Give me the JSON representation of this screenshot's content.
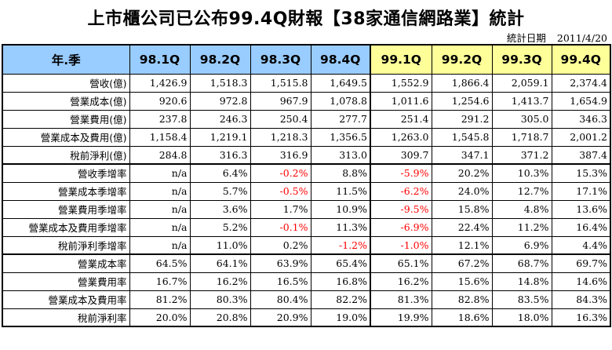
{
  "title": "上市櫃公司已公布99.4Q財報【38家通信網路業】統計",
  "stat_date_label": "統計日期",
  "stat_date_value": "2011/4/20",
  "header": {
    "corner": "年.季",
    "quarters": [
      "98.1Q",
      "98.2Q",
      "98.3Q",
      "98.4Q",
      "99.1Q",
      "99.2Q",
      "99.3Q",
      "99.4Q"
    ]
  },
  "rows": [
    {
      "label": "營收(億)",
      "values": [
        "1,426.9",
        "1,518.3",
        "1,515.8",
        "1,649.5",
        "1,552.9",
        "1,866.4",
        "2,059.1",
        "2,374.4"
      ]
    },
    {
      "label": "營業成本(億)",
      "values": [
        "920.6",
        "972.8",
        "967.9",
        "1,078.8",
        "1,011.6",
        "1,254.6",
        "1,413.7",
        "1,654.9"
      ]
    },
    {
      "label": "營業費用(億)",
      "values": [
        "237.8",
        "246.3",
        "250.4",
        "277.7",
        "251.4",
        "291.2",
        "305.0",
        "346.3"
      ]
    },
    {
      "label": "營業成本及費用(億)",
      "values": [
        "1,158.4",
        "1,219.1",
        "1,218.3",
        "1,356.5",
        "1,263.0",
        "1,545.8",
        "1,718.7",
        "2,001.2"
      ]
    },
    {
      "label": "稅前淨利(億)",
      "values": [
        "284.8",
        "316.3",
        "316.9",
        "313.0",
        "309.7",
        "347.1",
        "371.2",
        "387.4"
      ]
    },
    {
      "label": "營收季增率",
      "values": [
        "n/a",
        "6.4%",
        "-0.2%",
        "8.8%",
        "-5.9%",
        "20.2%",
        "10.3%",
        "15.3%"
      ]
    },
    {
      "label": "營業成本季增率",
      "values": [
        "n/a",
        "5.7%",
        "-0.5%",
        "11.5%",
        "-6.2%",
        "24.0%",
        "12.7%",
        "17.1%"
      ]
    },
    {
      "label": "營業費用季增率",
      "values": [
        "n/a",
        "3.6%",
        "1.7%",
        "10.9%",
        "-9.5%",
        "15.8%",
        "4.8%",
        "13.6%"
      ]
    },
    {
      "label": "營業成本及費用季增率",
      "values": [
        "n/a",
        "5.2%",
        "-0.1%",
        "11.3%",
        "-6.9%",
        "22.4%",
        "11.2%",
        "16.4%"
      ]
    },
    {
      "label": "稅前淨利季增率",
      "values": [
        "n/a",
        "11.0%",
        "0.2%",
        "-1.2%",
        "-1.0%",
        "12.1%",
        "6.9%",
        "4.4%"
      ]
    },
    {
      "label": "營業成本率",
      "values": [
        "64.5%",
        "64.1%",
        "63.9%",
        "65.4%",
        "65.1%",
        "67.2%",
        "68.7%",
        "69.7%"
      ]
    },
    {
      "label": "營業費用率",
      "values": [
        "16.7%",
        "16.2%",
        "16.5%",
        "16.8%",
        "16.2%",
        "15.6%",
        "14.8%",
        "14.6%"
      ]
    },
    {
      "label": "營業成本及費用率",
      "values": [
        "81.2%",
        "80.3%",
        "80.4%",
        "82.2%",
        "81.3%",
        "82.8%",
        "83.5%",
        "84.3%"
      ]
    },
    {
      "label": "稅前淨利率",
      "values": [
        "20.0%",
        "20.8%",
        "20.9%",
        "19.0%",
        "19.9%",
        "18.6%",
        "18.0%",
        "16.3%"
      ]
    }
  ],
  "colors": {
    "header_blue": "#99ccff",
    "header_yellow": "#ffff99",
    "negative": "#ff0000"
  }
}
